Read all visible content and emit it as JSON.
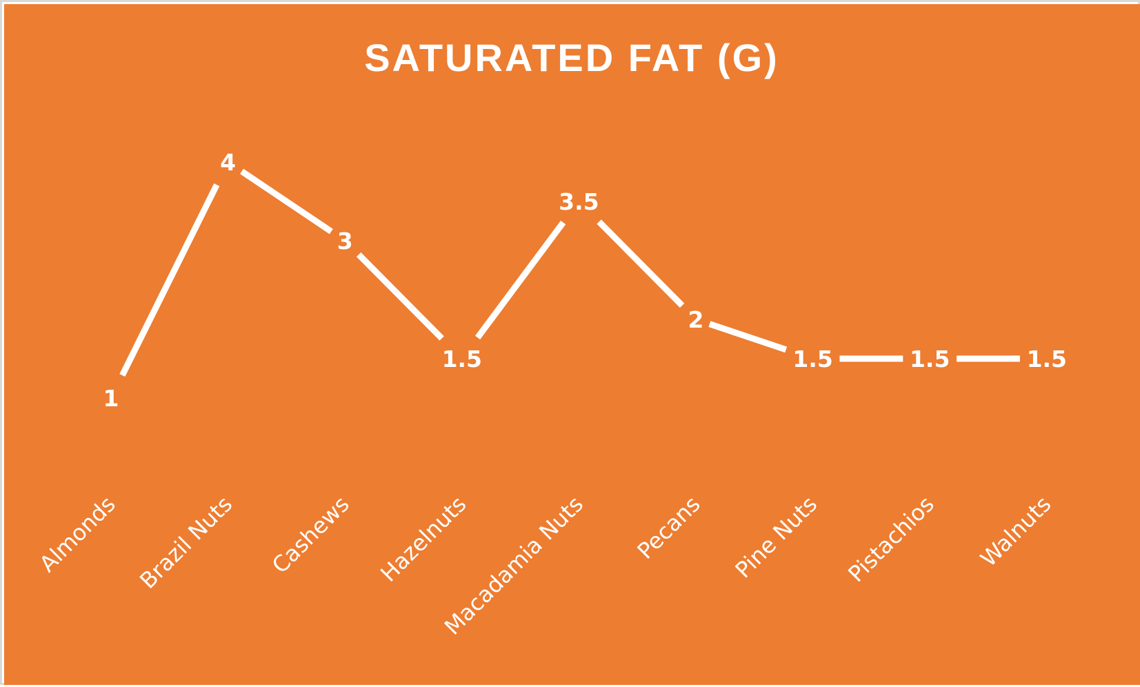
{
  "chart_data": {
    "type": "line",
    "title": "SATURATED FAT (G)",
    "categories": [
      "Almonds",
      "Brazil Nuts",
      "Cashews",
      "Hazelnuts",
      "Macadamia Nuts",
      "Pecans",
      "Pine Nuts",
      "Pistachios",
      "Walnuts"
    ],
    "series": [
      {
        "values": [
          1,
          4,
          3,
          1.5,
          3.5,
          2,
          1.5,
          1.5,
          1.5
        ]
      }
    ],
    "data_labels": [
      "1",
      "4",
      "3",
      "1.5",
      "3.5",
      "2",
      "1.5",
      "1.5",
      "1.5"
    ],
    "xlabel": "",
    "ylabel": "",
    "ylim": [
      0,
      5
    ],
    "grid": false,
    "legend": "none",
    "drop_lines": true
  },
  "colors": {
    "background": "#ED7D31",
    "line": "#FFFFFF",
    "text": "#FFFFFF",
    "frame": "#D9D9D9"
  }
}
